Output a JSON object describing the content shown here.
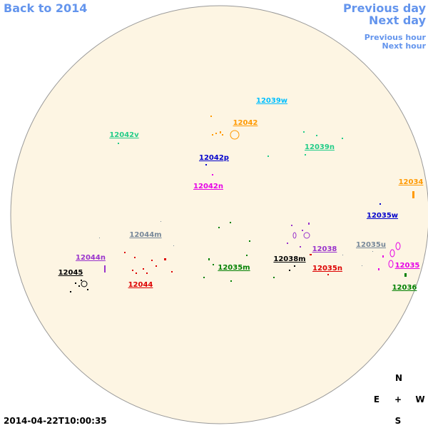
{
  "nav": {
    "back": "Back to 2014",
    "previous_day": "Previous day",
    "next_day": "Next day",
    "previous_hour": "Previous hour",
    "next_hour": "Next hour"
  },
  "regions": [
    {
      "label": "12039w",
      "color": "#00bfff"
    },
    {
      "label": "12042",
      "color": "#ff9900"
    },
    {
      "label": "12042v",
      "color": "#22cc88"
    },
    {
      "label": "12039n",
      "color": "#22cc88"
    },
    {
      "label": "12042p",
      "color": "#0000cc"
    },
    {
      "label": "12042n",
      "color": "#e600e6"
    },
    {
      "label": "12034",
      "color": "#ff9900"
    },
    {
      "label": "12035w",
      "color": "#0000cc"
    },
    {
      "label": "12044m",
      "color": "#778899"
    },
    {
      "label": "12035u",
      "color": "#778899"
    },
    {
      "label": "12038",
      "color": "#9933cc"
    },
    {
      "label": "12044n",
      "color": "#9933cc"
    },
    {
      "label": "12038m",
      "color": "#000000"
    },
    {
      "label": "12035m",
      "color": "#008000"
    },
    {
      "label": "12035n",
      "color": "#dd0000"
    },
    {
      "label": "12035",
      "color": "#e600e6"
    },
    {
      "label": "12045",
      "color": "#000000"
    },
    {
      "label": "12044",
      "color": "#dd0000"
    },
    {
      "label": "12036",
      "color": "#008000"
    }
  ],
  "timestamp": "2014-04-22T10:00:35",
  "compass": {
    "north": "N",
    "east": "E",
    "center": "+",
    "west": "W",
    "south": "S"
  }
}
